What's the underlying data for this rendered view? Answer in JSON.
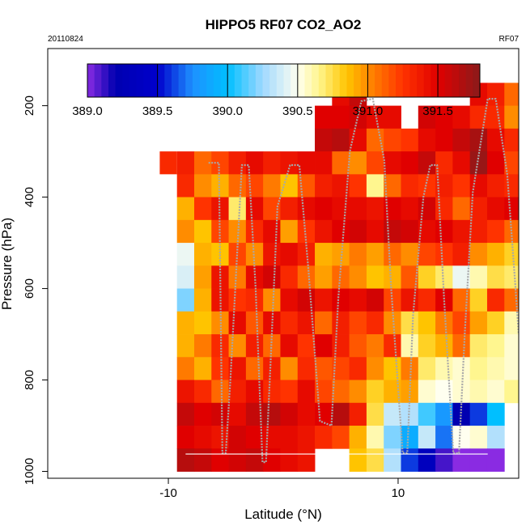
{
  "chart_data": {
    "type": "heatmap",
    "title": "HIPPO5 RF07 CO2_AO2",
    "date_label": "20110824",
    "flight_label": "RF07",
    "xlabel": "Latitude (°N)",
    "ylabel": "Pressure (hPa)",
    "xlim": [
      -20.5,
      20.5
    ],
    "ylim": [
      1015,
      75
    ],
    "x_ticks": [
      -10,
      10
    ],
    "x_tick_labels": [
      "-10",
      "10"
    ],
    "y_ticks": [
      200,
      400,
      600,
      800,
      1000
    ],
    "y_tick_labels": [
      "200",
      "400",
      "600",
      "800",
      "1000"
    ],
    "colorbar": {
      "min": 389.0,
      "max": 391.8,
      "ticks": [
        389.0,
        389.5,
        390.0,
        390.5,
        391.0,
        391.5
      ],
      "tick_labels": [
        "389.0",
        "389.5",
        "390.0",
        "390.5",
        "391.0",
        "391.5"
      ],
      "color_stops": [
        [
          389.0,
          "#8a2be2"
        ],
        [
          389.2,
          "#0000b0"
        ],
        [
          389.5,
          "#0000cc"
        ],
        [
          389.75,
          "#1e90ff"
        ],
        [
          390.0,
          "#00bfff"
        ],
        [
          390.25,
          "#9fd8ff"
        ],
        [
          390.5,
          "#fffff0"
        ],
        [
          390.65,
          "#fff68f"
        ],
        [
          390.85,
          "#ffc400"
        ],
        [
          391.0,
          "#ff8c00"
        ],
        [
          391.25,
          "#ff3300"
        ],
        [
          391.5,
          "#e00000"
        ],
        [
          391.8,
          "#8b1a1a"
        ]
      ]
    },
    "lat_bins": [
      -8.5,
      -7,
      -5.5,
      -4,
      -2.5,
      -1,
      0.5,
      2,
      3.5,
      5,
      6.5,
      8,
      9.5,
      11,
      12.5,
      14,
      15.5,
      17,
      18.5,
      20
    ],
    "pressure_bins": [
      175,
      225,
      275,
      325,
      375,
      425,
      475,
      525,
      575,
      625,
      675,
      725,
      775,
      825,
      875,
      925,
      975
    ],
    "values": [
      [
        null,
        null,
        null,
        null,
        null,
        null,
        null,
        null,
        null,
        391.45,
        391.6,
        null,
        null,
        null,
        null,
        null,
        null,
        391.45,
        391.35,
        391.1
      ],
      [
        null,
        null,
        null,
        null,
        null,
        null,
        null,
        null,
        391.5,
        391.5,
        391.55,
        391.45,
        391.45,
        null,
        391.55,
        391.5,
        391.45,
        391.3,
        391.3,
        391.0
      ],
      [
        null,
        null,
        null,
        null,
        null,
        null,
        null,
        null,
        391.6,
        391.65,
        391.45,
        391.1,
        391.2,
        391.25,
        391.45,
        391.5,
        391.6,
        391.7,
        391.45,
        391.3
      ],
      [
        391.35,
        391.1,
        391.2,
        391.35,
        391.45,
        391.35,
        391.4,
        391.45,
        391.45,
        391.1,
        391.0,
        391.2,
        391.45,
        391.5,
        391.6,
        391.3,
        391.45,
        391.75,
        391.5,
        391.2
      ],
      [
        391.3,
        391.0,
        390.9,
        391.1,
        391.2,
        391.05,
        390.85,
        391.15,
        391.35,
        391.4,
        391.25,
        390.65,
        391.1,
        391.3,
        391.25,
        391.35,
        391.25,
        391.45,
        391.35,
        391.3
      ],
      [
        390.9,
        391.25,
        391.4,
        390.7,
        391.45,
        391.2,
        391.35,
        391.45,
        391.5,
        391.45,
        391.45,
        391.4,
        391.5,
        391.45,
        391.55,
        391.3,
        391.1,
        391.35,
        391.45,
        391.5
      ],
      [
        391.0,
        390.85,
        391.2,
        391.0,
        391.3,
        391.45,
        390.95,
        391.25,
        391.4,
        391.5,
        391.55,
        391.45,
        391.6,
        391.55,
        391.45,
        391.5,
        391.4,
        391.35,
        391.25,
        391.1
      ],
      [
        390.45,
        390.9,
        390.85,
        391.2,
        391.0,
        391.4,
        391.45,
        391.35,
        390.9,
        390.95,
        391.05,
        390.95,
        391.1,
        391.0,
        391.2,
        391.25,
        391.35,
        391.0,
        390.9,
        390.8
      ],
      [
        390.4,
        390.95,
        391.4,
        391.05,
        391.45,
        391.55,
        391.3,
        391.1,
        390.95,
        391.1,
        391.0,
        390.85,
        390.9,
        391.15,
        390.8,
        390.7,
        390.45,
        390.6,
        390.75,
        390.7
      ],
      [
        390.2,
        390.9,
        391.4,
        391.25,
        391.3,
        391.0,
        391.45,
        391.55,
        391.4,
        391.5,
        391.45,
        391.55,
        391.2,
        391.4,
        391.3,
        391.5,
        391.1,
        390.8,
        391.3,
        391.1
      ],
      [
        390.9,
        390.85,
        391.0,
        391.45,
        391.15,
        391.45,
        391.3,
        391.4,
        391.1,
        391.35,
        391.2,
        391.3,
        391.0,
        390.75,
        390.85,
        391.05,
        391.2,
        390.95,
        390.8,
        390.6
      ],
      [
        390.9,
        391.05,
        391.3,
        391.0,
        391.35,
        391.1,
        391.45,
        391.25,
        391.5,
        391.35,
        391.15,
        391.05,
        391.3,
        390.6,
        390.8,
        390.9,
        391.1,
        390.7,
        390.65,
        390.55
      ],
      [
        391.05,
        390.9,
        391.25,
        391.4,
        391.1,
        391.35,
        391.0,
        391.3,
        391.15,
        391.2,
        391.3,
        391.0,
        390.85,
        391.05,
        390.7,
        390.6,
        390.55,
        390.65,
        390.6,
        390.55
      ],
      [
        391.4,
        391.3,
        391.1,
        391.35,
        391.45,
        391.3,
        391.25,
        391.45,
        391.2,
        391.1,
        391.0,
        390.8,
        390.9,
        390.95,
        390.55,
        390.5,
        390.55,
        390.6,
        390.55,
        390.65
      ],
      [
        391.6,
        391.5,
        391.55,
        391.45,
        391.6,
        391.65,
        391.55,
        391.45,
        391.5,
        391.65,
        391.35,
        390.75,
        390.35,
        390.3,
        390.1,
        389.8,
        389.2,
        389.6,
        390.0,
        null
      ],
      [
        391.5,
        391.45,
        391.4,
        391.55,
        391.5,
        391.45,
        391.45,
        391.4,
        391.3,
        391.2,
        390.9,
        390.6,
        390.2,
        389.9,
        390.35,
        389.7,
        390.5,
        390.55,
        390.3,
        null
      ],
      [
        391.65,
        391.6,
        391.5,
        391.55,
        391.6,
        391.5,
        391.45,
        391.4,
        null,
        null,
        390.85,
        390.75,
        390.3,
        389.6,
        389.35,
        389.1,
        389.0,
        389.0,
        389.0,
        null
      ]
    ],
    "stray_cells": [
      {
        "lat": -10,
        "pressure": 325,
        "value": 391.3
      }
    ],
    "flight_track": [
      [
        -6.5,
        325
      ],
      [
        -5.6,
        325
      ],
      [
        -5.3,
        960
      ],
      [
        -5.0,
        960
      ],
      [
        -4.6,
        800
      ],
      [
        -3.6,
        330
      ],
      [
        -3.0,
        330
      ],
      [
        -2.4,
        600
      ],
      [
        -1.8,
        980
      ],
      [
        -1.5,
        980
      ],
      [
        -1.1,
        760
      ],
      [
        -0.5,
        420
      ],
      [
        0.6,
        330
      ],
      [
        1.4,
        330
      ],
      [
        2.2,
        560
      ],
      [
        3.2,
        890
      ],
      [
        4.2,
        900
      ],
      [
        4.8,
        620
      ],
      [
        5.8,
        300
      ],
      [
        6.8,
        190
      ],
      [
        7.8,
        185
      ],
      [
        8.8,
        320
      ],
      [
        9.4,
        600
      ],
      [
        10.4,
        960
      ],
      [
        10.8,
        960
      ],
      [
        11.3,
        660
      ],
      [
        12.2,
        400
      ],
      [
        12.8,
        330
      ],
      [
        13.4,
        330
      ],
      [
        14.0,
        620
      ],
      [
        14.8,
        960
      ],
      [
        15.3,
        960
      ],
      [
        15.8,
        700
      ],
      [
        16.5,
        390
      ],
      [
        17.8,
        185
      ],
      [
        18.5,
        185
      ],
      [
        19.5,
        350
      ],
      [
        20.2,
        590
      ],
      [
        20.5,
        700
      ]
    ],
    "surface_line": {
      "pressure": 962,
      "lat_range": [
        -8.5,
        17.8
      ]
    }
  }
}
